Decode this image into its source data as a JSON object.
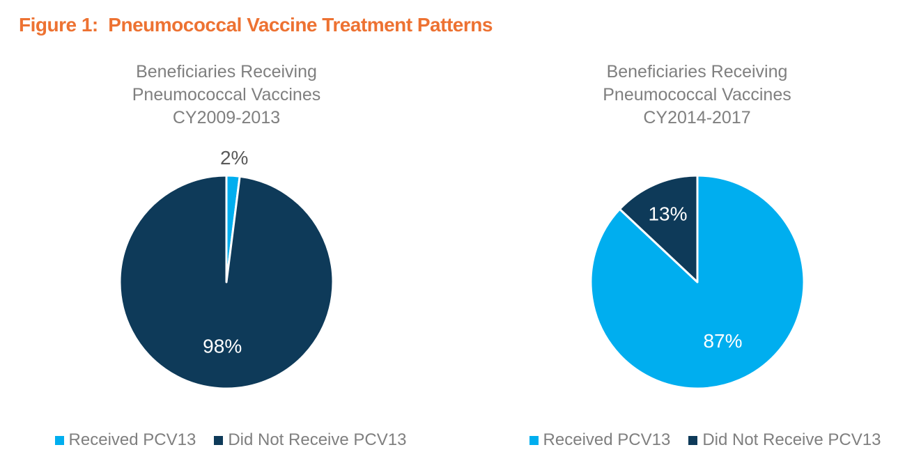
{
  "figure_title": "Figure 1:  Pneumococcal Vaccine Treatment Patterns",
  "colors": {
    "title_orange": "#ED7232",
    "chart_title_gray": "#7F7F7F",
    "legend_text_gray": "#7F7F7F",
    "outside_label_gray": "#595959",
    "received_blue": "#00AEEF",
    "not_received_navy": "#0E3A59",
    "slice_border": "#FFFFFF",
    "background": "#FFFFFF"
  },
  "chart_data": [
    {
      "type": "pie",
      "title_lines": [
        "Beneficiaries Receiving",
        "Pneumococcal Vaccines",
        "CY2009-2013"
      ],
      "start_angle_deg": 0,
      "direction": "clockwise",
      "legend_position": "bottom",
      "slices": [
        {
          "label": "Received PCV13",
          "value": 2,
          "pct_label": "2%",
          "color": "#00AEEF",
          "label_color": "#595959",
          "label_r": 1.17,
          "label_outside": true
        },
        {
          "label": "Did Not Receive PCV13",
          "value": 98,
          "pct_label": "98%",
          "color": "#0E3A59",
          "label_color": "#FFFFFF",
          "label_r": 0.6,
          "label_outside": false
        }
      ]
    },
    {
      "type": "pie",
      "title_lines": [
        "Beneficiaries Receiving",
        "Pneumococcal Vaccines",
        "CY2014-2017"
      ],
      "start_angle_deg": 0,
      "direction": "clockwise",
      "legend_position": "bottom",
      "slices": [
        {
          "label": "Received PCV13",
          "value": 87,
          "pct_label": "87%",
          "color": "#00AEEF",
          "label_color": "#FFFFFF",
          "label_r": 0.6,
          "label_outside": false
        },
        {
          "label": "Did Not Receive PCV13",
          "value": 13,
          "pct_label": "13%",
          "color": "#0E3A59",
          "label_color": "#FFFFFF",
          "label_r": 0.7,
          "label_outside": false
        }
      ]
    }
  ]
}
